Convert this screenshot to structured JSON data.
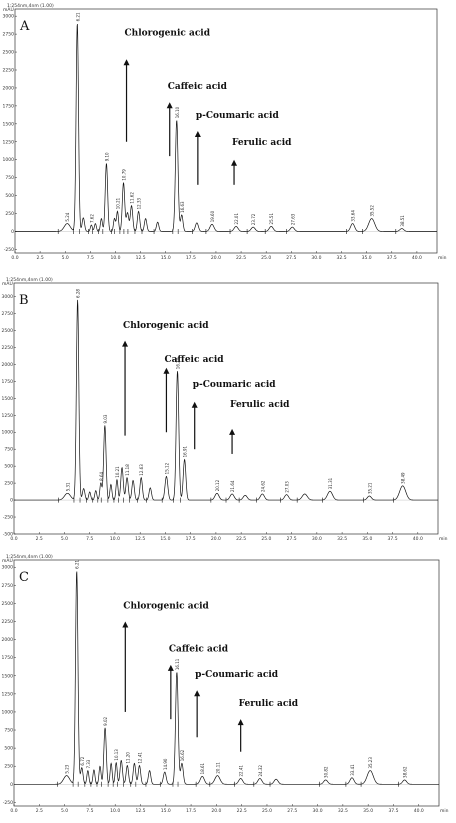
{
  "chart_data": [
    {
      "type": "line",
      "panel_label": "A",
      "header_text": "1:254nm,4nm (1.00)",
      "x_unit": "min",
      "y_unit": "mAU",
      "xlim": [
        0,
        42
      ],
      "ylim": [
        -300,
        3100
      ],
      "x_ticks": [
        0.0,
        2.5,
        5.0,
        7.5,
        10.0,
        12.5,
        15.0,
        17.5,
        20.0,
        22.5,
        25.0,
        27.5,
        30.0,
        32.5,
        35.0,
        37.5,
        40.0
      ],
      "y_ticks": [
        -250,
        0,
        250,
        500,
        750,
        1000,
        1250,
        1500,
        1750,
        2000,
        2250,
        2500,
        2750,
        3000
      ],
      "peaks": [
        {
          "rt": 5.2,
          "h": 110,
          "w": 0.3
        },
        {
          "rt": 6.2,
          "h": 2900,
          "w": 0.12
        },
        {
          "rt": 6.8,
          "h": 190,
          "w": 0.12
        },
        {
          "rt": 7.6,
          "h": 90,
          "w": 0.1
        },
        {
          "rt": 8.0,
          "h": 110,
          "w": 0.1
        },
        {
          "rt": 8.6,
          "h": 180,
          "w": 0.1
        },
        {
          "rt": 9.1,
          "h": 950,
          "w": 0.12
        },
        {
          "rt": 9.9,
          "h": 180,
          "w": 0.1
        },
        {
          "rt": 10.2,
          "h": 280,
          "w": 0.1
        },
        {
          "rt": 10.8,
          "h": 680,
          "w": 0.12
        },
        {
          "rt": 11.2,
          "h": 260,
          "w": 0.12
        },
        {
          "rt": 11.6,
          "h": 360,
          "w": 0.12
        },
        {
          "rt": 12.3,
          "h": 280,
          "w": 0.12
        },
        {
          "rt": 13.0,
          "h": 180,
          "w": 0.12
        },
        {
          "rt": 14.2,
          "h": 130,
          "w": 0.12
        },
        {
          "rt": 16.1,
          "h": 1550,
          "w": 0.13
        },
        {
          "rt": 16.6,
          "h": 230,
          "w": 0.12
        },
        {
          "rt": 18.1,
          "h": 120,
          "w": 0.15
        },
        {
          "rt": 19.6,
          "h": 100,
          "w": 0.2
        },
        {
          "rt": 22.0,
          "h": 70,
          "w": 0.2
        },
        {
          "rt": 23.7,
          "h": 60,
          "w": 0.2
        },
        {
          "rt": 25.5,
          "h": 70,
          "w": 0.2
        },
        {
          "rt": 27.6,
          "h": 60,
          "w": 0.2
        },
        {
          "rt": 33.6,
          "h": 110,
          "w": 0.2
        },
        {
          "rt": 35.5,
          "h": 180,
          "w": 0.3
        },
        {
          "rt": 38.5,
          "h": 40,
          "w": 0.2
        }
      ],
      "peak_labels": [
        {
          "rt": 5.2,
          "text": "5.24"
        },
        {
          "rt": 6.2,
          "text": "6.21"
        },
        {
          "rt": 7.6,
          "text": "7.62"
        },
        {
          "rt": 9.1,
          "text": "9.10"
        },
        {
          "rt": 10.2,
          "text": "10.21"
        },
        {
          "rt": 10.8,
          "text": "10.79"
        },
        {
          "rt": 11.6,
          "text": "11.62"
        },
        {
          "rt": 12.3,
          "text": "12.33"
        },
        {
          "rt": 16.1,
          "text": "16.10"
        },
        {
          "rt": 16.6,
          "text": "16.63"
        },
        {
          "rt": 19.6,
          "text": "19.60"
        },
        {
          "rt": 22.0,
          "text": "22.01"
        },
        {
          "rt": 23.7,
          "text": "23.72"
        },
        {
          "rt": 25.5,
          "text": "25.51"
        },
        {
          "rt": 27.6,
          "text": "27.63"
        },
        {
          "rt": 33.6,
          "text": "33.64"
        },
        {
          "rt": 35.5,
          "text": "35.52"
        },
        {
          "rt": 38.5,
          "text": "38.51"
        }
      ],
      "annotations": [
        {
          "text": "Chlorogenic acid",
          "rt": 11.1,
          "y_text": 2650,
          "y_tip": 2400,
          "y_tail": 1250
        },
        {
          "text": "Caffeic acid",
          "rt": 15.4,
          "y_text": 1900,
          "y_tip": 1800,
          "y_tail": 1050
        },
        {
          "text": "p-Coumaric acid",
          "rt": 18.2,
          "y_text": 1500,
          "y_tip": 1400,
          "y_tail": 650
        },
        {
          "text": "Ferulic acid",
          "rt": 21.8,
          "y_text": 1120,
          "y_tip": 1000,
          "y_tail": 650
        }
      ]
    },
    {
      "type": "line",
      "panel_label": "B",
      "header_text": "1:254nm,4nm (1.00)",
      "x_unit": "min",
      "y_unit": "mAU",
      "xlim": [
        0,
        42
      ],
      "ylim": [
        -500,
        3200
      ],
      "x_ticks": [
        0.0,
        2.5,
        5.0,
        7.5,
        10.0,
        12.5,
        15.0,
        17.5,
        20.0,
        22.5,
        25.0,
        27.5,
        30.0,
        32.5,
        35.0,
        37.5,
        40.0
      ],
      "y_ticks": [
        -500,
        -250,
        0,
        250,
        500,
        750,
        1000,
        1250,
        1500,
        1750,
        2000,
        2250,
        2500,
        2750,
        3000
      ],
      "peaks": [
        {
          "rt": 5.3,
          "h": 100,
          "w": 0.3
        },
        {
          "rt": 6.3,
          "h": 2950,
          "w": 0.12
        },
        {
          "rt": 6.9,
          "h": 170,
          "w": 0.12
        },
        {
          "rt": 7.5,
          "h": 120,
          "w": 0.1
        },
        {
          "rt": 8.1,
          "h": 140,
          "w": 0.1
        },
        {
          "rt": 8.6,
          "h": 250,
          "w": 0.1
        },
        {
          "rt": 9.0,
          "h": 1100,
          "w": 0.12
        },
        {
          "rt": 9.6,
          "h": 230,
          "w": 0.1
        },
        {
          "rt": 10.2,
          "h": 300,
          "w": 0.1
        },
        {
          "rt": 10.7,
          "h": 480,
          "w": 0.12
        },
        {
          "rt": 11.2,
          "h": 330,
          "w": 0.12
        },
        {
          "rt": 11.8,
          "h": 290,
          "w": 0.12
        },
        {
          "rt": 12.6,
          "h": 330,
          "w": 0.12
        },
        {
          "rt": 13.5,
          "h": 180,
          "w": 0.12
        },
        {
          "rt": 15.1,
          "h": 350,
          "w": 0.14
        },
        {
          "rt": 16.2,
          "h": 1900,
          "w": 0.13
        },
        {
          "rt": 16.9,
          "h": 600,
          "w": 0.13
        },
        {
          "rt": 20.1,
          "h": 100,
          "w": 0.2
        },
        {
          "rt": 21.6,
          "h": 90,
          "w": 0.2
        },
        {
          "rt": 22.9,
          "h": 70,
          "w": 0.2
        },
        {
          "rt": 24.6,
          "h": 90,
          "w": 0.2
        },
        {
          "rt": 27.0,
          "h": 80,
          "w": 0.2
        },
        {
          "rt": 28.8,
          "h": 90,
          "w": 0.25
        },
        {
          "rt": 31.3,
          "h": 130,
          "w": 0.25
        },
        {
          "rt": 35.2,
          "h": 60,
          "w": 0.2
        },
        {
          "rt": 38.5,
          "h": 210,
          "w": 0.3
        }
      ],
      "peak_labels": [
        {
          "rt": 5.3,
          "text": "5.31"
        },
        {
          "rt": 6.3,
          "text": "6.28"
        },
        {
          "rt": 8.6,
          "text": "8.64"
        },
        {
          "rt": 9.0,
          "text": "9.03"
        },
        {
          "rt": 10.2,
          "text": "10.21"
        },
        {
          "rt": 11.2,
          "text": "11.18"
        },
        {
          "rt": 12.6,
          "text": "12.63"
        },
        {
          "rt": 15.1,
          "text": "15.12"
        },
        {
          "rt": 16.2,
          "text": "16.24"
        },
        {
          "rt": 16.9,
          "text": "16.91"
        },
        {
          "rt": 20.1,
          "text": "20.12"
        },
        {
          "rt": 21.6,
          "text": "21.64"
        },
        {
          "rt": 24.6,
          "text": "24.62"
        },
        {
          "rt": 27.0,
          "text": "27.03"
        },
        {
          "rt": 31.3,
          "text": "31.31"
        },
        {
          "rt": 35.2,
          "text": "35.21"
        },
        {
          "rt": 38.5,
          "text": "38.49"
        }
      ],
      "annotations": [
        {
          "text": "Chlorogenic acid",
          "rt": 11.0,
          "y_text": 2450,
          "y_tip": 2350,
          "y_tail": 950
        },
        {
          "text": "Caffeic acid",
          "rt": 15.1,
          "y_text": 1950,
          "y_tip": 1950,
          "y_tail": 1000
        },
        {
          "text": "p-Coumaric acid",
          "rt": 17.9,
          "y_text": 1580,
          "y_tip": 1450,
          "y_tail": 750
        },
        {
          "text": "Ferulic acid",
          "rt": 21.6,
          "y_text": 1280,
          "y_tip": 1050,
          "y_tail": 680
        }
      ]
    },
    {
      "type": "line",
      "panel_label": "C",
      "header_text": "1:254nm,4nm (1.00)",
      "x_unit": "min",
      "y_unit": "mAU",
      "xlim": [
        0,
        42
      ],
      "ylim": [
        -300,
        3100
      ],
      "x_ticks": [
        0.0,
        2.5,
        5.0,
        7.5,
        10.0,
        12.5,
        15.0,
        17.5,
        20.0,
        22.5,
        25.0,
        27.5,
        30.0,
        32.5,
        35.0,
        37.5,
        40.0
      ],
      "y_ticks": [
        -250,
        0,
        250,
        500,
        750,
        1000,
        1250,
        1500,
        1750,
        2000,
        2250,
        2500,
        2750,
        3000
      ],
      "peaks": [
        {
          "rt": 5.2,
          "h": 120,
          "w": 0.3
        },
        {
          "rt": 6.2,
          "h": 2950,
          "w": 0.12
        },
        {
          "rt": 6.7,
          "h": 230,
          "w": 0.12
        },
        {
          "rt": 7.3,
          "h": 190,
          "w": 0.1
        },
        {
          "rt": 7.9,
          "h": 200,
          "w": 0.1
        },
        {
          "rt": 8.5,
          "h": 250,
          "w": 0.1
        },
        {
          "rt": 9.0,
          "h": 780,
          "w": 0.12
        },
        {
          "rt": 9.6,
          "h": 290,
          "w": 0.1
        },
        {
          "rt": 10.1,
          "h": 300,
          "w": 0.1
        },
        {
          "rt": 10.6,
          "h": 330,
          "w": 0.12
        },
        {
          "rt": 11.2,
          "h": 260,
          "w": 0.12
        },
        {
          "rt": 11.9,
          "h": 290,
          "w": 0.12
        },
        {
          "rt": 12.4,
          "h": 260,
          "w": 0.12
        },
        {
          "rt": 13.4,
          "h": 190,
          "w": 0.12
        },
        {
          "rt": 14.9,
          "h": 170,
          "w": 0.14
        },
        {
          "rt": 16.1,
          "h": 1550,
          "w": 0.13
        },
        {
          "rt": 16.6,
          "h": 290,
          "w": 0.13
        },
        {
          "rt": 18.6,
          "h": 110,
          "w": 0.2
        },
        {
          "rt": 20.1,
          "h": 120,
          "w": 0.25
        },
        {
          "rt": 22.4,
          "h": 80,
          "w": 0.2
        },
        {
          "rt": 24.3,
          "h": 80,
          "w": 0.2
        },
        {
          "rt": 25.9,
          "h": 70,
          "w": 0.2
        },
        {
          "rt": 30.8,
          "h": 60,
          "w": 0.2
        },
        {
          "rt": 33.4,
          "h": 90,
          "w": 0.2
        },
        {
          "rt": 35.2,
          "h": 190,
          "w": 0.3
        },
        {
          "rt": 38.6,
          "h": 60,
          "w": 0.2
        }
      ],
      "peak_labels": [
        {
          "rt": 5.2,
          "text": "5.23"
        },
        {
          "rt": 6.2,
          "text": "6.21"
        },
        {
          "rt": 6.7,
          "text": "6.72"
        },
        {
          "rt": 7.3,
          "text": "7.33"
        },
        {
          "rt": 9.0,
          "text": "9.02"
        },
        {
          "rt": 10.1,
          "text": "10.13"
        },
        {
          "rt": 11.2,
          "text": "11.20"
        },
        {
          "rt": 12.4,
          "text": "12.41"
        },
        {
          "rt": 14.9,
          "text": "14.90"
        },
        {
          "rt": 16.1,
          "text": "16.11"
        },
        {
          "rt": 16.6,
          "text": "16.62"
        },
        {
          "rt": 18.6,
          "text": "18.61"
        },
        {
          "rt": 20.1,
          "text": "20.11"
        },
        {
          "rt": 22.4,
          "text": "22.41"
        },
        {
          "rt": 24.3,
          "text": "24.32"
        },
        {
          "rt": 30.8,
          "text": "30.82"
        },
        {
          "rt": 33.4,
          "text": "33.41"
        },
        {
          "rt": 35.2,
          "text": "35.23"
        },
        {
          "rt": 38.6,
          "text": "38.62"
        }
      ],
      "annotations": [
        {
          "text": "Chlorogenic acid",
          "rt": 11.0,
          "y_text": 2350,
          "y_tip": 2250,
          "y_tail": 1000
        },
        {
          "text": "Caffeic acid",
          "rt": 15.5,
          "y_text": 1750,
          "y_tip": 1650,
          "y_tail": 900
        },
        {
          "text": "p-Coumaric acid",
          "rt": 18.1,
          "y_text": 1400,
          "y_tip": 1300,
          "y_tail": 650
        },
        {
          "text": "Ferulic acid",
          "rt": 22.4,
          "y_text": 1000,
          "y_tip": 900,
          "y_tail": 450
        }
      ]
    }
  ]
}
